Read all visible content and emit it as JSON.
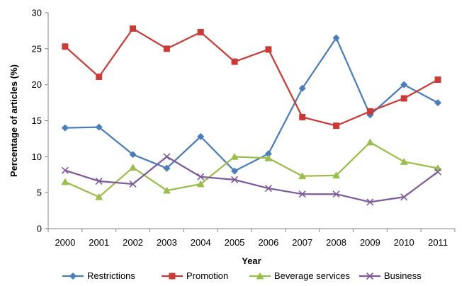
{
  "chart_data": {
    "type": "line",
    "title": "",
    "xlabel": "Year",
    "ylabel": "Percentage of articles (%)",
    "x": [
      "2000",
      "2001",
      "2002",
      "2003",
      "2004",
      "2005",
      "2006",
      "2007",
      "2008",
      "2009",
      "2010",
      "2011"
    ],
    "ylim": [
      0,
      30
    ],
    "yticks": [
      0,
      5,
      10,
      15,
      20,
      25,
      30
    ],
    "grid": false,
    "legend": "bottom",
    "series": [
      {
        "name": "Restrictions",
        "color": "#4a7ebb",
        "marker": "diamond",
        "values": [
          14.0,
          14.1,
          10.3,
          8.4,
          12.8,
          8.0,
          10.4,
          19.5,
          26.5,
          15.8,
          20.0,
          17.5
        ]
      },
      {
        "name": "Promotion",
        "color": "#cc3a36",
        "marker": "square",
        "values": [
          25.3,
          21.1,
          27.8,
          25.0,
          27.3,
          23.2,
          24.9,
          15.5,
          14.3,
          16.3,
          18.1,
          20.7
        ]
      },
      {
        "name": "Beverage services",
        "color": "#99bf4a",
        "marker": "triangle",
        "values": [
          6.5,
          4.4,
          8.5,
          5.3,
          6.2,
          10.0,
          9.8,
          7.3,
          7.4,
          12.0,
          9.3,
          8.4
        ]
      },
      {
        "name": "Business",
        "color": "#7d5a9e",
        "marker": "x",
        "values": [
          8.1,
          6.6,
          6.2,
          10.0,
          7.2,
          6.8,
          5.6,
          4.8,
          4.8,
          3.7,
          4.4,
          7.9
        ]
      }
    ]
  }
}
